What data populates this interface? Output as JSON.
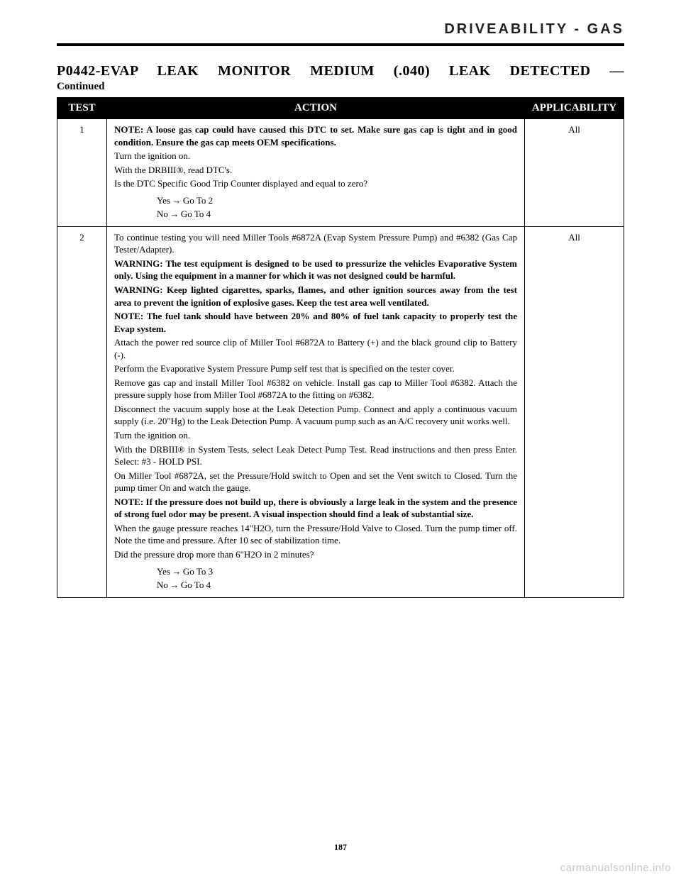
{
  "header": {
    "section": "DRIVEABILITY - GAS"
  },
  "title": "P0442-EVAP LEAK MONITOR MEDIUM (.040) LEAK DETECTED —",
  "continued": "Continued",
  "table": {
    "headers": {
      "test": "TEST",
      "action": "ACTION",
      "applicability": "APPLICABILITY"
    },
    "rows": [
      {
        "test": "1",
        "applicability": "All",
        "action": {
          "lines": [
            {
              "cls": "note",
              "text": "NOTE: A loose gas cap could have caused this DTC to set. Make sure gas cap is tight and in good condition. Ensure the gas cap meets OEM specifications."
            },
            {
              "cls": "",
              "text": "Turn the ignition on."
            },
            {
              "cls": "",
              "text": "With the DRBIII®, read DTC's."
            },
            {
              "cls": "",
              "text": "Is the DTC Specific Good Trip Counter displayed and equal to zero?"
            }
          ],
          "yes": {
            "label": "Yes",
            "goto": "Go To   2"
          },
          "no": {
            "label": "No",
            "goto": "Go To   4"
          }
        }
      },
      {
        "test": "2",
        "applicability": "All",
        "action": {
          "lines": [
            {
              "cls": "",
              "text": "To continue testing you will need Miller Tools #6872A (Evap System Pressure Pump) and #6382 (Gas Cap Tester/Adapter)."
            },
            {
              "cls": "note",
              "text": "WARNING: The test equipment is designed to be used to pressurize the vehicles Evaporative System only. Using the equipment in a manner for which it was not designed could be harmful."
            },
            {
              "cls": "note",
              "text": "WARNING: Keep lighted cigarettes, sparks, flames, and other ignition sources away from the test area to prevent the ignition of explosive gases. Keep the test area well ventilated."
            },
            {
              "cls": "note",
              "text": "NOTE: The fuel tank should have between 20% and 80% of fuel tank capacity to properly test the Evap system."
            },
            {
              "cls": "",
              "text": "Attach the power red source clip of Miller Tool #6872A to Battery (+) and the black ground clip to Battery (-)."
            },
            {
              "cls": "",
              "text": "Perform the Evaporative System Pressure Pump self test that is specified on the tester cover."
            },
            {
              "cls": "",
              "text": "Remove gas cap and install Miller Tool #6382 on vehicle. Install gas cap to Miller Tool #6382. Attach the pressure supply hose from Miller Tool #6872A to the fitting on #6382."
            },
            {
              "cls": "",
              "text": "Disconnect the vacuum supply hose at the Leak Detection Pump. Connect and apply a continuous vacuum supply (i.e. 20\"Hg) to the Leak Detection Pump. A vacuum pump such as an A/C recovery unit works well."
            },
            {
              "cls": "",
              "text": "Turn the ignition on."
            },
            {
              "cls": "",
              "text": "With the DRBIII® in System Tests, select Leak Detect Pump Test. Read instructions and then press Enter. Select: #3 - HOLD PSI."
            },
            {
              "cls": "",
              "text": "On Miller Tool #6872A, set the Pressure/Hold switch to Open and set the Vent switch to Closed. Turn the pump timer On and watch the gauge."
            },
            {
              "cls": "note",
              "text": "NOTE: If the pressure does not build up, there is obviously a large leak in the system and the presence of strong fuel odor may be present. A visual inspection should find a leak of substantial size."
            },
            {
              "cls": "",
              "text": "When the gauge pressure reaches 14\"H2O, turn the Pressure/Hold Valve to Closed. Turn the pump timer off. Note the time and pressure. After 10 sec of stabilization time."
            },
            {
              "cls": "",
              "text": "Did the pressure drop more than 6\"H2O in 2 minutes?"
            }
          ],
          "yes": {
            "label": "Yes",
            "goto": "Go To   3"
          },
          "no": {
            "label": "No",
            "goto": "Go To   4"
          }
        }
      }
    ]
  },
  "pagenum": "187",
  "watermark": "carmanualsonline.info",
  "arrow": "→"
}
